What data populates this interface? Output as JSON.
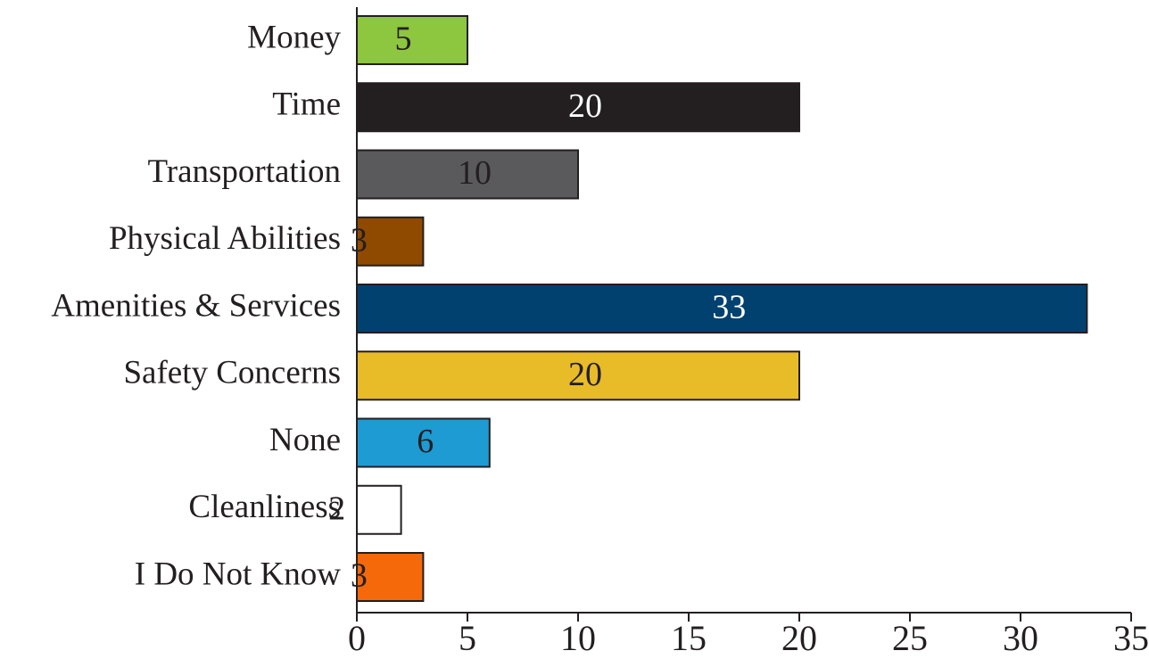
{
  "chart_data": {
    "type": "barh",
    "categories": [
      "Money",
      "Time",
      "Transportation",
      "Physical Abilities",
      "Amenities & Services",
      "Safety Concerns",
      "None",
      "Cleanliness",
      "I Do Not Know"
    ],
    "values": [
      5,
      20,
      10,
      3,
      33,
      20,
      6,
      2,
      3
    ],
    "colors": [
      "#8dc63f",
      "#231f20",
      "#5a5a5c",
      "#8f4a00",
      "#004170",
      "#e8bb29",
      "#1d9bd2",
      "#ffffff",
      "#f6690b"
    ],
    "label_colors": [
      "#231f20",
      "#ffffff",
      "#231f20",
      "#231f20",
      "#ffffff",
      "#231f20",
      "#231f20",
      "#231f20",
      "#231f20"
    ],
    "xlim": [
      0,
      35
    ],
    "xticks": [
      0,
      5,
      10,
      15,
      20,
      25,
      30,
      35
    ]
  }
}
